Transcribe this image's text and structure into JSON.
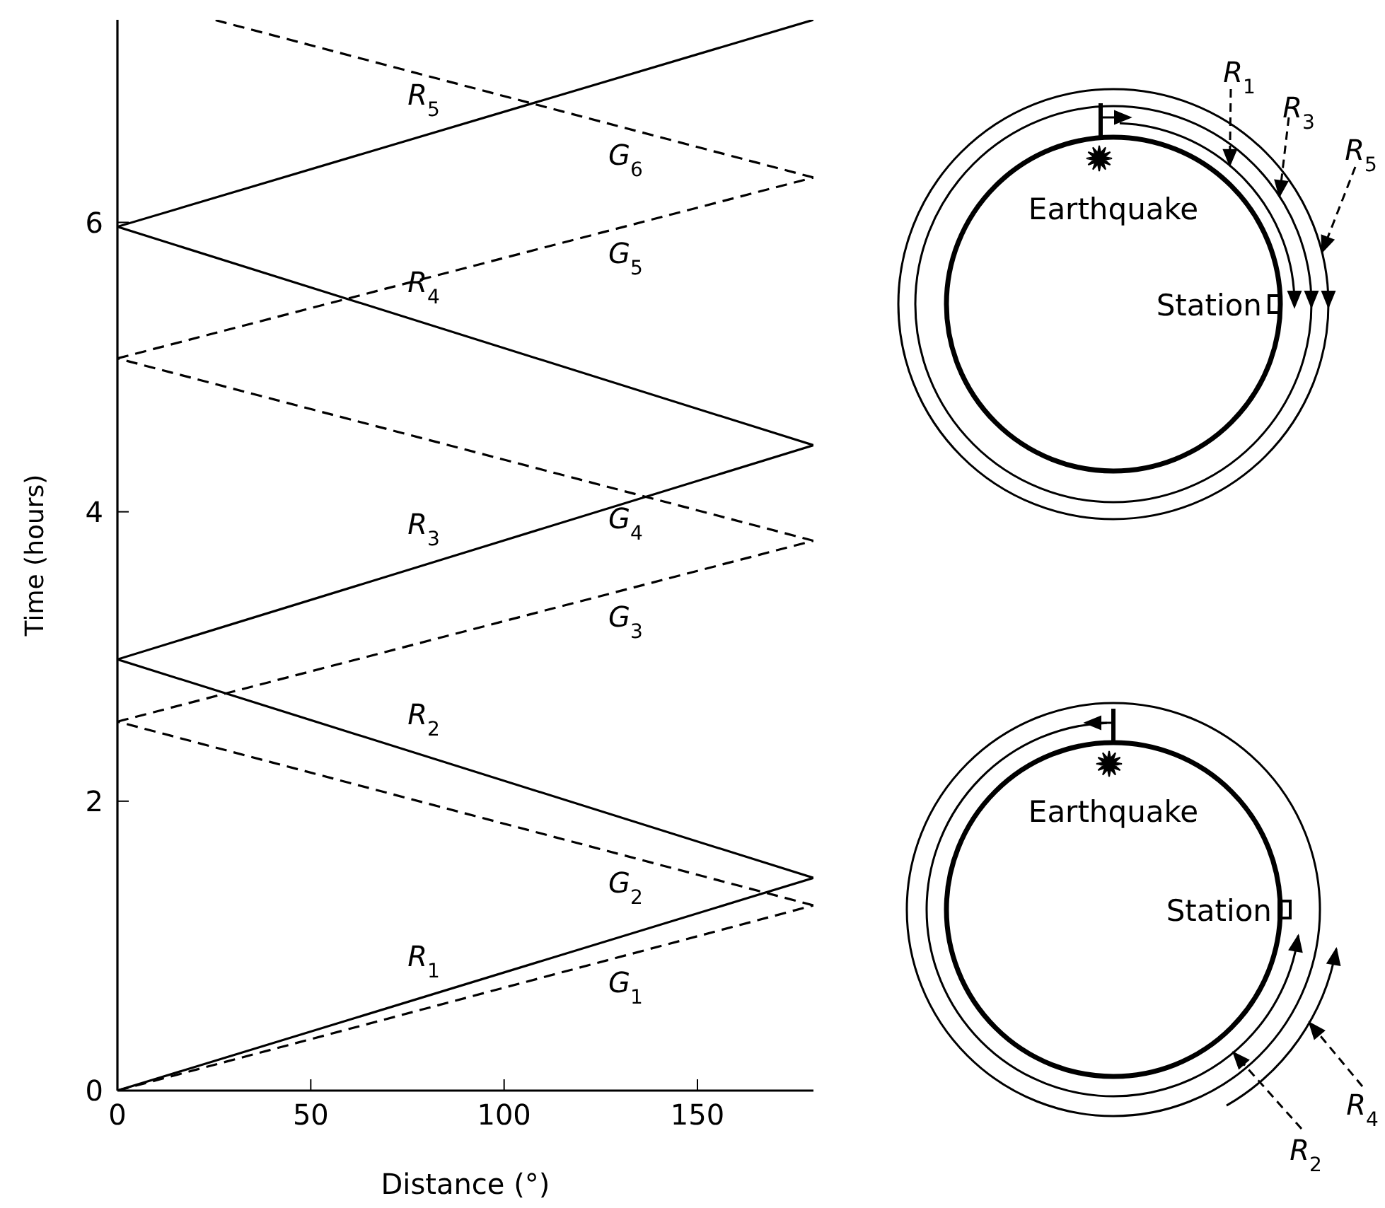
{
  "chart_data": {
    "type": "line",
    "xlabel": "Distance (°)",
    "ylabel": "Time (hours)",
    "xlim": [
      0,
      180
    ],
    "xticks": [
      0,
      50,
      100,
      150
    ],
    "ylim": [
      0,
      7.4
    ],
    "yticks": [
      0,
      2,
      4,
      6
    ],
    "marker": "none",
    "series": [
      {
        "name": "R$_{1}$",
        "color": "#000000",
        "line_style": "solid",
        "x": [
          0,
          180
        ],
        "values": [
          0,
          1.47
        ]
      },
      {
        "name": "R$_{2}$",
        "color": "#000000",
        "line_style": "solid",
        "x": [
          180,
          0
        ],
        "values": [
          1.47,
          2.98
        ]
      },
      {
        "name": "R$_{3}$",
        "color": "#000000",
        "line_style": "solid",
        "x": [
          0,
          180
        ],
        "values": [
          2.98,
          4.46
        ]
      },
      {
        "name": "R$_{4}$",
        "color": "#000000",
        "line_style": "solid",
        "x": [
          180,
          0
        ],
        "values": [
          4.46,
          5.97
        ]
      },
      {
        "name": "R$_{5}$",
        "color": "#000000",
        "line_style": "solid",
        "x": [
          0,
          180
        ],
        "values": [
          5.97,
          7.4
        ]
      },
      {
        "name": "G$_{1}$",
        "color": "#000000",
        "line_style": "dashed",
        "x": [
          0,
          180
        ],
        "values": [
          0,
          1.28
        ]
      },
      {
        "name": "G$_{2}$",
        "color": "#000000",
        "line_style": "dashed",
        "x": [
          180,
          0
        ],
        "values": [
          1.28,
          2.55
        ]
      },
      {
        "name": "G$_{3}$",
        "color": "#000000",
        "line_style": "dashed",
        "x": [
          0,
          180
        ],
        "values": [
          2.55,
          3.8
        ]
      },
      {
        "name": "G$_{4}$",
        "color": "#000000",
        "line_style": "dashed",
        "x": [
          180,
          0
        ],
        "values": [
          3.8,
          5.06
        ]
      },
      {
        "name": "G$_{5}$",
        "color": "#000000",
        "line_style": "dashed",
        "x": [
          0,
          180
        ],
        "values": [
          5.06,
          6.31
        ]
      },
      {
        "name": "G$_{6}$",
        "color": "#000000",
        "line_style": "dashed",
        "x": [
          180,
          25
        ],
        "values": [
          6.31,
          7.4
        ]
      }
    ],
    "annotations": [
      "Earthquake",
      "Station",
      "R$_{1}$",
      "R$_{3}$",
      "R$_{5}$",
      "Earthquake",
      "Station",
      "R$_{2}$",
      "R$_{4}$"
    ]
  }
}
